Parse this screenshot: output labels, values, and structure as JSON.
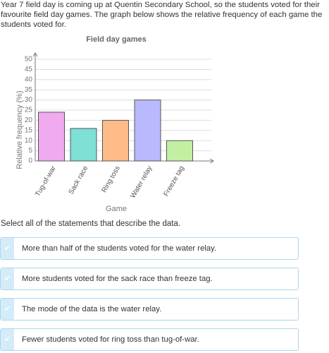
{
  "intro": "Year 7 field day is coming up at Quentin Secondary School, so the students voted for their favourite field day games. The graph below shows the relative frequency of each game the students voted for.",
  "chart_data": {
    "type": "bar",
    "title": "Field day games",
    "y_label": "Relative frequency (%)",
    "x_label": "Game",
    "categories": [
      "Tug-of-war",
      "Sack race",
      "Ring toss",
      "Water relay",
      "Freeze tag"
    ],
    "values": [
      24,
      16,
      20,
      30,
      10
    ],
    "colors": [
      "#f0aaf0",
      "#7fe0d6",
      "#ffbb88",
      "#b9b9ff",
      "#c2f0a2"
    ],
    "ylim": [
      0,
      50
    ],
    "yticks": [
      0,
      5,
      10,
      15,
      20,
      25,
      30,
      35,
      40,
      45,
      50
    ],
    "grid": true
  },
  "prompt": "Select all of the statements that describe the data.",
  "options": [
    "More than half of the students voted for the water relay.",
    "More students voted for the sack race than freeze tag.",
    "The mode of the data is the water relay.",
    "Fewer students voted for ring toss than tug-of-war."
  ]
}
